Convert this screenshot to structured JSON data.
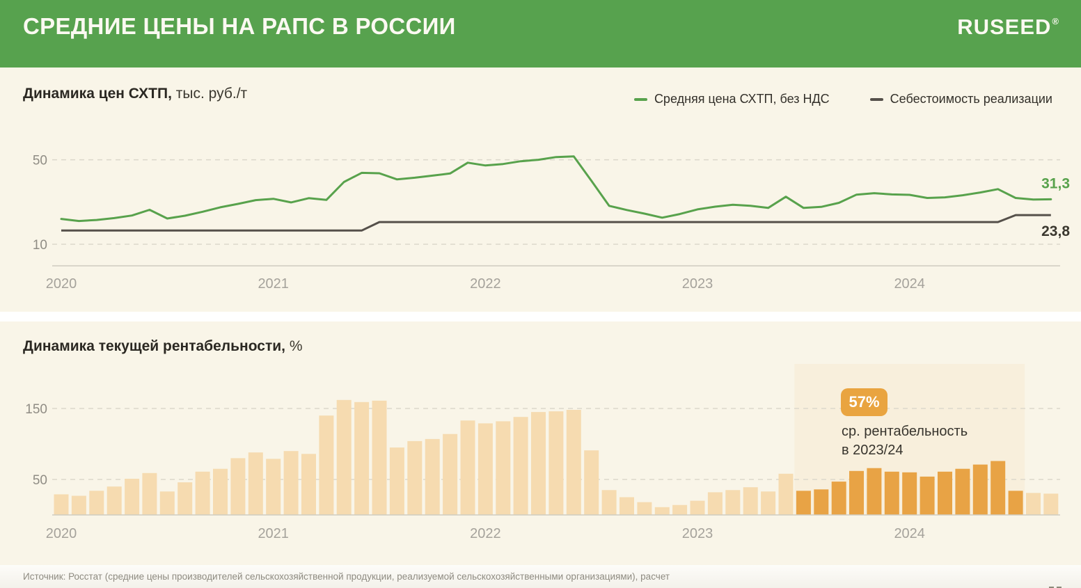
{
  "header": {
    "title": "СРЕДНИЕ ЦЕНЫ НА РАПС В РОССИИ",
    "logo_text": "RUSEED",
    "logo_mark": "®"
  },
  "price_chart": {
    "title": "Динамика цен СХТП,",
    "unit": "тыс. руб./т",
    "legend": [
      {
        "label": "Средняя цена СХТП, без НДС"
      },
      {
        "label": "Себестоимость реализации"
      }
    ]
  },
  "profitability_chart": {
    "title": "Динамика текущей рентабельности,",
    "unit": "%",
    "badge": "57%",
    "caption_line1": "ср. рентабельность",
    "caption_line2": "в 2023/24"
  },
  "footer": {
    "source": "Источник: Росстат (средние цены производителей сельскохозяйственной продукции, реализуемой сельскохозяйственными организациями), расчет"
  },
  "colors": {
    "header_green": "#57a24e",
    "panel_bg": "#f9f5e8",
    "price_line": "#58a24c",
    "cost_line": "#55504a",
    "cost_label": "#3b382f",
    "bar": "#f6dbb0",
    "bar_highlight": "#e8a345",
    "highlight_bg": "#f8efdc",
    "gridline": "#dcd8cb",
    "axis_line": "#cfccc0",
    "axis_text": "#8f8c84",
    "axis_text_light": "#a5a29b",
    "badge_bg": "#e9a440",
    "source_text": "#8e8b81"
  },
  "chart_data": [
    {
      "type": "line",
      "title": "Динамика цен СХТП, тыс. руб./т",
      "x_start": "2020-01",
      "x_freq": "monthly",
      "x_tick_labels": [
        "2020",
        "2021",
        "2022",
        "2023",
        "2024"
      ],
      "y_ticks": [
        50,
        10
      ],
      "ylim": [
        0,
        55
      ],
      "grid": "dashed-horizontal",
      "legend_position": "top-right",
      "series": [
        {
          "name": "Средняя цена СХТП, без НДС",
          "color": "#58a24c",
          "values": [
            22.0,
            21.0,
            21.5,
            22.4,
            23.6,
            26.3,
            22.2,
            23.5,
            25.4,
            27.5,
            29.1,
            30.9,
            31.5,
            29.8,
            31.8,
            31.0,
            39.5,
            43.8,
            43.6,
            40.7,
            41.5,
            42.5,
            43.5,
            48.6,
            47.3,
            48.0,
            49.3,
            50.0,
            51.3,
            51.6,
            40.0,
            28.2,
            26.2,
            24.5,
            22.6,
            24.3,
            26.5,
            27.8,
            28.7,
            28.2,
            27.2,
            32.5,
            27.2,
            27.7,
            29.6,
            33.5,
            34.2,
            33.6,
            33.4,
            31.9,
            32.2,
            33.2,
            34.5,
            36.1,
            31.9,
            31.2,
            31.3
          ]
        },
        {
          "name": "Себестоимость реализации",
          "color": "#55504a",
          "values": [
            16.5,
            16.5,
            16.5,
            16.5,
            16.5,
            16.5,
            16.5,
            16.5,
            16.5,
            16.5,
            16.5,
            16.5,
            16.5,
            16.5,
            16.5,
            16.5,
            16.5,
            16.5,
            20.5,
            20.5,
            20.5,
            20.5,
            20.5,
            20.5,
            20.5,
            20.5,
            20.5,
            20.5,
            20.5,
            20.5,
            20.5,
            20.5,
            20.5,
            20.5,
            20.5,
            20.5,
            20.5,
            20.5,
            20.5,
            20.5,
            20.5,
            20.5,
            20.5,
            20.5,
            20.5,
            20.5,
            20.5,
            20.5,
            20.5,
            20.5,
            20.5,
            20.5,
            20.5,
            20.5,
            23.8,
            23.8,
            23.8
          ]
        }
      ],
      "end_labels": [
        "31,3",
        "23,8"
      ]
    },
    {
      "type": "bar",
      "title": "Динамика текущей рентабельности, %",
      "x_start": "2020-01",
      "x_freq": "monthly",
      "x_tick_labels": [
        "2020",
        "2021",
        "2022",
        "2023",
        "2024"
      ],
      "y_ticks": [
        150,
        50
      ],
      "ylim": [
        0,
        172
      ],
      "grid": "dashed-horizontal",
      "bar_color": "#f6dbb0",
      "highlight_color": "#e8a345",
      "values": [
        29,
        27,
        34,
        40,
        51,
        59,
        33,
        46,
        61,
        65,
        80,
        88,
        79,
        90,
        86,
        140,
        162,
        159,
        161,
        95,
        104,
        107,
        114,
        133,
        129,
        132,
        138,
        145,
        146,
        148,
        91,
        35,
        25,
        18,
        11,
        14,
        20,
        32,
        35,
        39,
        33,
        58,
        34,
        36,
        47,
        62,
        66,
        61,
        60,
        54,
        61,
        65,
        71,
        76,
        34,
        31,
        30
      ],
      "highlight": {
        "from_index": 42,
        "to_index": 54,
        "period": "2023/24",
        "badge": "57%",
        "caption": "ср. рентабельность в 2023/24"
      }
    }
  ]
}
